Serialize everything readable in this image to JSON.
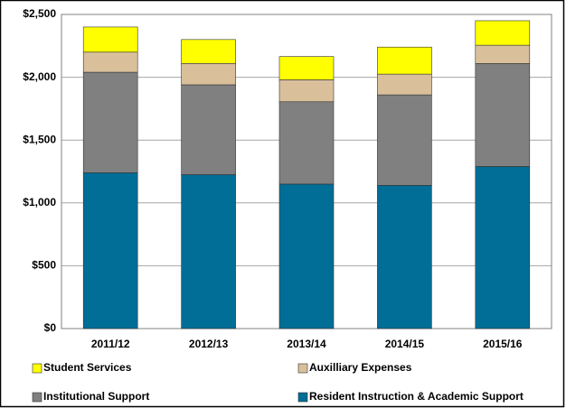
{
  "chart_data": {
    "type": "stacked_bar",
    "categories": [
      "2011/12",
      "2012/13",
      "2013/14",
      "2014/15",
      "2015/16"
    ],
    "series": [
      {
        "name": "Resident Instruction & Academic Support",
        "color": "#006e96",
        "values": [
          1240,
          1225,
          1150,
          1140,
          1290
        ]
      },
      {
        "name": "Institutional Support",
        "color": "#808080",
        "values": [
          800,
          715,
          655,
          720,
          820
        ]
      },
      {
        "name": "Auxilliary Expenses",
        "color": "#d9c09b",
        "values": [
          160,
          170,
          175,
          165,
          145
        ]
      },
      {
        "name": "Student Services",
        "color": "#ffff00",
        "values": [
          200,
          190,
          185,
          215,
          195
        ]
      }
    ],
    "ylim": [
      0,
      2500
    ],
    "yticks": [
      {
        "value": 0,
        "label": "$0"
      },
      {
        "value": 500,
        "label": "$500"
      },
      {
        "value": 1000,
        "label": "$1,000"
      },
      {
        "value": 1500,
        "label": "$1,500"
      },
      {
        "value": 2000,
        "label": "$2,000"
      },
      {
        "value": 2500,
        "label": "$2,500"
      }
    ],
    "grid": true
  }
}
